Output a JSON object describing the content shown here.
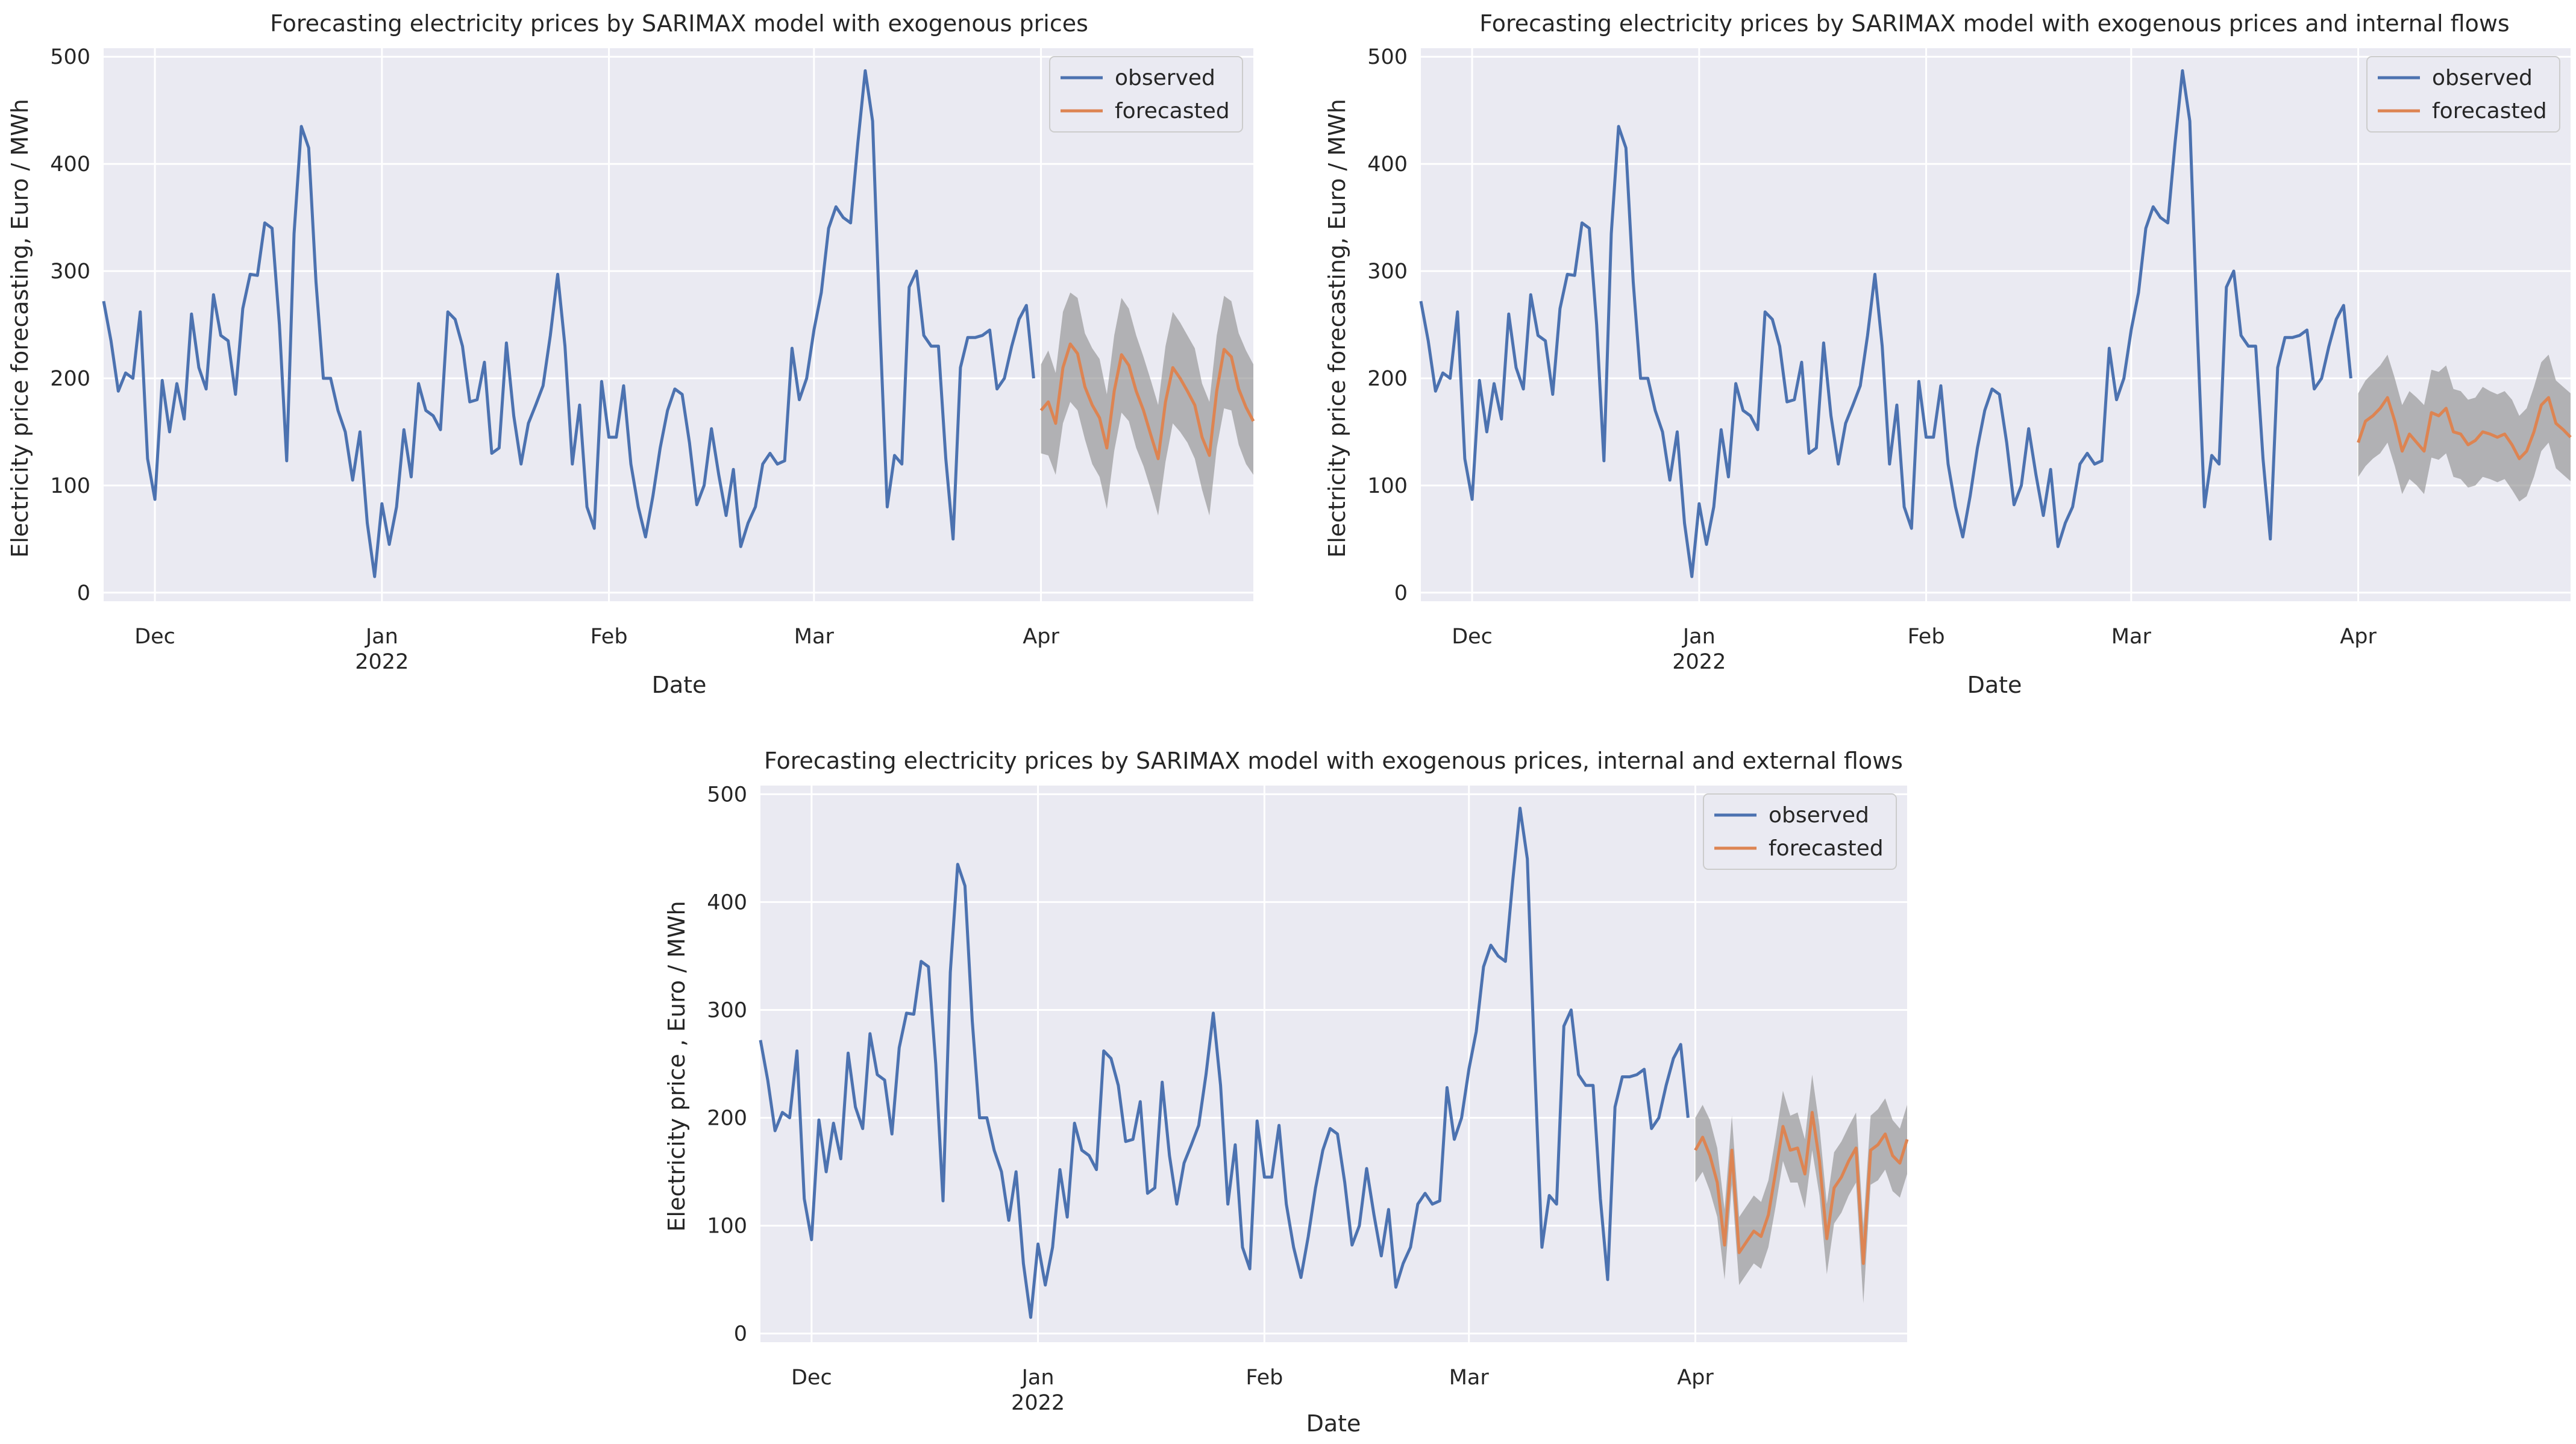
{
  "colors": {
    "observed": "#4c72b0",
    "forecasted": "#dd8452",
    "band": "#8a8a8a",
    "axes_bg": "#eaeaf2",
    "grid": "#ffffff"
  },
  "chart_data": [
    {
      "type": "line",
      "title": "Forecasting electricity prices by SARIMAX model with exogenous prices",
      "xlabel": "Date",
      "ylabel": "Electricity price forecasting, Euro / MWh",
      "ylim": [
        -8,
        508
      ],
      "xlim": [
        "2021-11-24",
        "2022-04-30"
      ],
      "yticks": [
        0,
        100,
        200,
        300,
        400,
        500
      ],
      "xticks": [
        {
          "date": "2021-12-01",
          "label": "Dec",
          "sublabel": ""
        },
        {
          "date": "2022-01-01",
          "label": "Jan",
          "sublabel": "2022"
        },
        {
          "date": "2022-02-01",
          "label": "Feb",
          "sublabel": ""
        },
        {
          "date": "2022-03-01",
          "label": "Mar",
          "sublabel": ""
        },
        {
          "date": "2022-04-01",
          "label": "Apr",
          "sublabel": ""
        }
      ],
      "grid": true,
      "legend": {
        "position": "top-right",
        "entries": [
          "observed",
          "forecasted"
        ]
      },
      "series": [
        {
          "name": "observed",
          "x_start": "2021-11-24",
          "step_days": 1,
          "values": [
            272,
            235,
            188,
            205,
            200,
            262,
            125,
            87,
            198,
            150,
            195,
            162,
            260,
            210,
            190,
            278,
            240,
            235,
            185,
            265,
            297,
            296,
            345,
            340,
            250,
            123,
            335,
            435,
            415,
            290,
            200,
            200,
            170,
            150,
            105,
            150,
            65,
            15,
            83,
            45,
            80,
            152,
            108,
            195,
            170,
            165,
            152,
            262,
            255,
            230,
            178,
            180,
            215,
            130,
            135,
            233,
            165,
            120,
            158,
            175,
            193,
            240,
            297,
            230,
            120,
            175,
            80,
            60,
            197,
            145,
            145,
            193,
            120,
            80,
            52,
            90,
            135,
            170,
            190,
            185,
            140,
            82,
            100,
            153,
            110,
            72,
            115,
            43,
            65,
            80,
            120,
            130,
            120,
            123,
            228,
            180,
            200,
            245,
            280,
            340,
            360,
            350,
            345,
            420,
            487,
            440,
            250,
            80,
            128,
            120,
            285,
            300,
            240,
            230,
            230,
            125,
            50,
            210,
            238,
            238,
            240,
            245,
            190,
            200,
            230,
            255,
            268,
            200
          ]
        },
        {
          "name": "forecasted",
          "x_start": "2022-04-01",
          "step_days": 1,
          "values": [
            170,
            178,
            158,
            210,
            232,
            223,
            192,
            175,
            163,
            135,
            188,
            222,
            212,
            188,
            170,
            147,
            125,
            178,
            210,
            200,
            188,
            175,
            145,
            128,
            188,
            227,
            220,
            190,
            173,
            160
          ],
          "lower": [
            130,
            128,
            110,
            158,
            178,
            170,
            143,
            120,
            108,
            78,
            132,
            168,
            160,
            135,
            118,
            96,
            72,
            122,
            158,
            150,
            140,
            125,
            96,
            72,
            135,
            172,
            170,
            138,
            120,
            110
          ],
          "upper": [
            213,
            226,
            205,
            262,
            280,
            275,
            242,
            228,
            218,
            185,
            240,
            275,
            265,
            240,
            220,
            198,
            175,
            230,
            262,
            252,
            240,
            228,
            195,
            178,
            240,
            277,
            272,
            242,
            226,
            213
          ]
        }
      ]
    },
    {
      "type": "line",
      "title": "Forecasting electricity prices by SARIMAX model with exogenous prices and internal flows",
      "xlabel": "Date",
      "ylabel": "Electricity price forecasting, Euro / MWh",
      "ylim": [
        -8,
        508
      ],
      "xlim": [
        "2021-11-24",
        "2022-04-30"
      ],
      "yticks": [
        0,
        100,
        200,
        300,
        400,
        500
      ],
      "xticks": [
        {
          "date": "2021-12-01",
          "label": "Dec",
          "sublabel": ""
        },
        {
          "date": "2022-01-01",
          "label": "Jan",
          "sublabel": "2022"
        },
        {
          "date": "2022-02-01",
          "label": "Feb",
          "sublabel": ""
        },
        {
          "date": "2022-03-01",
          "label": "Mar",
          "sublabel": ""
        },
        {
          "date": "2022-04-01",
          "label": "Apr",
          "sublabel": ""
        }
      ],
      "grid": true,
      "legend": {
        "position": "top-right",
        "entries": [
          "observed",
          "forecasted"
        ]
      },
      "series": [
        {
          "name": "observed",
          "x_start": "2021-11-24",
          "step_days": 1,
          "values": [
            272,
            235,
            188,
            205,
            200,
            262,
            125,
            87,
            198,
            150,
            195,
            162,
            260,
            210,
            190,
            278,
            240,
            235,
            185,
            265,
            297,
            296,
            345,
            340,
            250,
            123,
            335,
            435,
            415,
            290,
            200,
            200,
            170,
            150,
            105,
            150,
            65,
            15,
            83,
            45,
            80,
            152,
            108,
            195,
            170,
            165,
            152,
            262,
            255,
            230,
            178,
            180,
            215,
            130,
            135,
            233,
            165,
            120,
            158,
            175,
            193,
            240,
            297,
            230,
            120,
            175,
            80,
            60,
            197,
            145,
            145,
            193,
            120,
            80,
            52,
            90,
            135,
            170,
            190,
            185,
            140,
            82,
            100,
            153,
            110,
            72,
            115,
            43,
            65,
            80,
            120,
            130,
            120,
            123,
            228,
            180,
            200,
            245,
            280,
            340,
            360,
            350,
            345,
            420,
            487,
            440,
            250,
            80,
            128,
            120,
            285,
            300,
            240,
            230,
            230,
            125,
            50,
            210,
            238,
            238,
            240,
            245,
            190,
            200,
            230,
            255,
            268,
            200
          ]
        },
        {
          "name": "forecasted",
          "x_start": "2022-04-01",
          "step_days": 1,
          "values": [
            140,
            160,
            165,
            172,
            182,
            160,
            132,
            148,
            140,
            132,
            168,
            165,
            172,
            150,
            148,
            138,
            142,
            150,
            148,
            145,
            148,
            138,
            125,
            132,
            150,
            175,
            182,
            158,
            152,
            145
          ],
          "lower": [
            108,
            118,
            125,
            130,
            140,
            118,
            92,
            106,
            100,
            92,
            126,
            124,
            130,
            108,
            106,
            98,
            100,
            108,
            106,
            103,
            106,
            96,
            85,
            90,
            108,
            132,
            140,
            116,
            110,
            104
          ],
          "upper": [
            186,
            198,
            205,
            212,
            222,
            200,
            175,
            188,
            182,
            175,
            208,
            206,
            212,
            190,
            188,
            180,
            182,
            192,
            188,
            185,
            188,
            180,
            165,
            172,
            192,
            215,
            222,
            198,
            192,
            186
          ]
        }
      ]
    },
    {
      "type": "line",
      "title": "Forecasting electricity prices by SARIMAX model with exogenous prices, internal and external flows",
      "xlabel": "Date",
      "ylabel": "Electricity price , Euro / MWh",
      "ylim": [
        -8,
        508
      ],
      "xlim": [
        "2021-11-24",
        "2022-04-30"
      ],
      "yticks": [
        0,
        100,
        200,
        300,
        400,
        500
      ],
      "xticks": [
        {
          "date": "2021-12-01",
          "label": "Dec",
          "sublabel": ""
        },
        {
          "date": "2022-01-01",
          "label": "Jan",
          "sublabel": "2022"
        },
        {
          "date": "2022-02-01",
          "label": "Feb",
          "sublabel": ""
        },
        {
          "date": "2022-03-01",
          "label": "Mar",
          "sublabel": ""
        },
        {
          "date": "2022-04-01",
          "label": "Apr",
          "sublabel": ""
        }
      ],
      "grid": true,
      "legend": {
        "position": "top-right",
        "entries": [
          "observed",
          "forecasted"
        ]
      },
      "series": [
        {
          "name": "observed",
          "x_start": "2021-11-24",
          "step_days": 1,
          "values": [
            272,
            235,
            188,
            205,
            200,
            262,
            125,
            87,
            198,
            150,
            195,
            162,
            260,
            210,
            190,
            278,
            240,
            235,
            185,
            265,
            297,
            296,
            345,
            340,
            250,
            123,
            335,
            435,
            415,
            290,
            200,
            200,
            170,
            150,
            105,
            150,
            65,
            15,
            83,
            45,
            80,
            152,
            108,
            195,
            170,
            165,
            152,
            262,
            255,
            230,
            178,
            180,
            215,
            130,
            135,
            233,
            165,
            120,
            158,
            175,
            193,
            240,
            297,
            230,
            120,
            175,
            80,
            60,
            197,
            145,
            145,
            193,
            120,
            80,
            52,
            90,
            135,
            170,
            190,
            185,
            140,
            82,
            100,
            153,
            110,
            72,
            115,
            43,
            65,
            80,
            120,
            130,
            120,
            123,
            228,
            180,
            200,
            245,
            280,
            340,
            360,
            350,
            345,
            420,
            487,
            440,
            250,
            80,
            128,
            120,
            285,
            300,
            240,
            230,
            230,
            125,
            50,
            210,
            238,
            238,
            240,
            245,
            190,
            200,
            230,
            255,
            268,
            200
          ]
        },
        {
          "name": "forecasted",
          "x_start": "2022-04-01",
          "step_days": 1,
          "values": [
            170,
            182,
            165,
            140,
            82,
            170,
            75,
            85,
            95,
            90,
            110,
            150,
            192,
            170,
            172,
            148,
            205,
            160,
            88,
            135,
            145,
            160,
            172,
            65,
            170,
            175,
            185,
            165,
            158,
            180
          ],
          "lower": [
            140,
            150,
            132,
            108,
            50,
            138,
            45,
            55,
            65,
            60,
            80,
            118,
            160,
            140,
            140,
            116,
            170,
            128,
            55,
            102,
            112,
            128,
            140,
            28,
            138,
            142,
            152,
            132,
            126,
            148
          ],
          "upper": [
            200,
            212,
            198,
            172,
            115,
            202,
            108,
            118,
            128,
            122,
            142,
            182,
            225,
            202,
            205,
            180,
            240,
            192,
            120,
            168,
            178,
            192,
            205,
            100,
            202,
            208,
            218,
            198,
            190,
            212
          ]
        }
      ]
    }
  ]
}
